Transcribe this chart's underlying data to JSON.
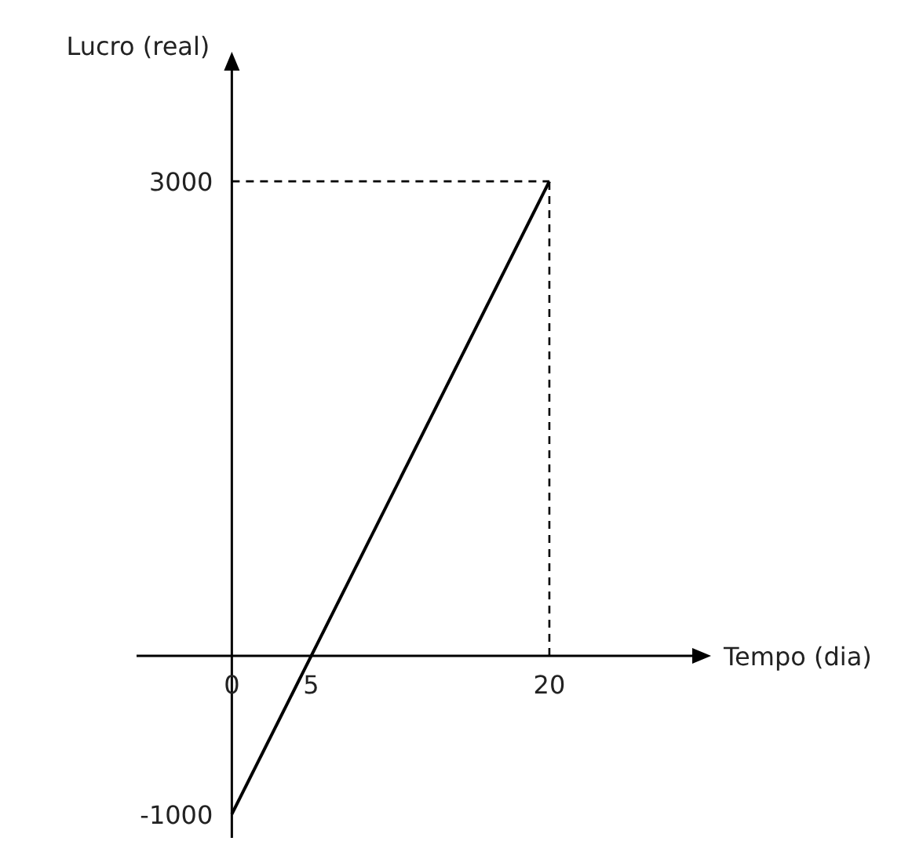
{
  "chart_data": {
    "type": "line",
    "xlabel": "Tempo (dia)",
    "ylabel": "Lucro (real)",
    "xlim": [
      -6,
      29
    ],
    "ylim": [
      -1150,
      3700
    ],
    "xticks": [
      0,
      5,
      20
    ],
    "yticks": [
      -1000,
      3000
    ],
    "grid": false,
    "x": [
      0,
      20
    ],
    "series": [
      {
        "values": [
          -1000,
          3000
        ],
        "color": "#000000",
        "line_style": "solid"
      }
    ],
    "ref_lines": [
      {
        "axis": "y",
        "value": 3000,
        "color": "#000000",
        "line_style": "dashed"
      },
      {
        "axis": "x",
        "value": 20,
        "color": "#000000",
        "line_style": "dashed"
      }
    ]
  }
}
